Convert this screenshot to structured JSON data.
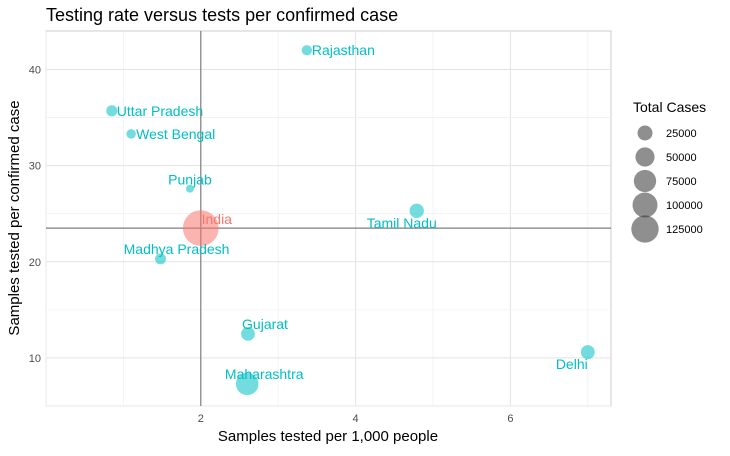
{
  "chart_data": {
    "type": "scatter",
    "title": "Testing rate versus tests per confirmed case",
    "xlabel": "Samples tested per 1,000 people",
    "ylabel": "Samples tested per confirmed case",
    "xlim": [
      0.0,
      7.3
    ],
    "ylim": [
      5.0,
      44.0
    ],
    "x_ticks": [
      2,
      4,
      6
    ],
    "y_ticks": [
      10,
      20,
      30,
      40
    ],
    "grid": true,
    "reference_lines": {
      "x": 2.0,
      "y": 23.5
    },
    "legend": {
      "title": "Total Cases",
      "placement": "right",
      "entries": [
        25000,
        50000,
        75000,
        100000,
        125000
      ]
    },
    "colors": {
      "highlight": "#f8766d",
      "others": "#00bfc4",
      "reference": "#7f7f7f"
    },
    "points": [
      {
        "label": "Rajasthan",
        "x": 3.37,
        "y": 42.0,
        "cases": 7000,
        "group": "other"
      },
      {
        "label": "Uttar Pradesh",
        "x": 0.85,
        "y": 35.7,
        "cases": 9500,
        "group": "other"
      },
      {
        "label": "West Bengal",
        "x": 1.1,
        "y": 33.3,
        "cases": 5000,
        "group": "other"
      },
      {
        "label": "Punjab",
        "x": 1.86,
        "y": 27.6,
        "cases": 2200,
        "group": "other"
      },
      {
        "label": "India",
        "x": 2.0,
        "y": 23.5,
        "cases": 236000,
        "group": "highlight"
      },
      {
        "label": "Tamil Nadu",
        "x": 4.79,
        "y": 25.3,
        "cases": 22000,
        "group": "other"
      },
      {
        "label": "Madhya Pradesh",
        "x": 1.48,
        "y": 20.3,
        "cases": 9000,
        "group": "other"
      },
      {
        "label": "Gujarat",
        "x": 2.61,
        "y": 12.5,
        "cases": 19000,
        "group": "other"
      },
      {
        "label": "Delhi",
        "x": 7.0,
        "y": 10.6,
        "cases": 20000,
        "group": "other"
      },
      {
        "label": "Maharashtra",
        "x": 2.6,
        "y": 7.3,
        "cases": 77000,
        "group": "other"
      }
    ]
  }
}
